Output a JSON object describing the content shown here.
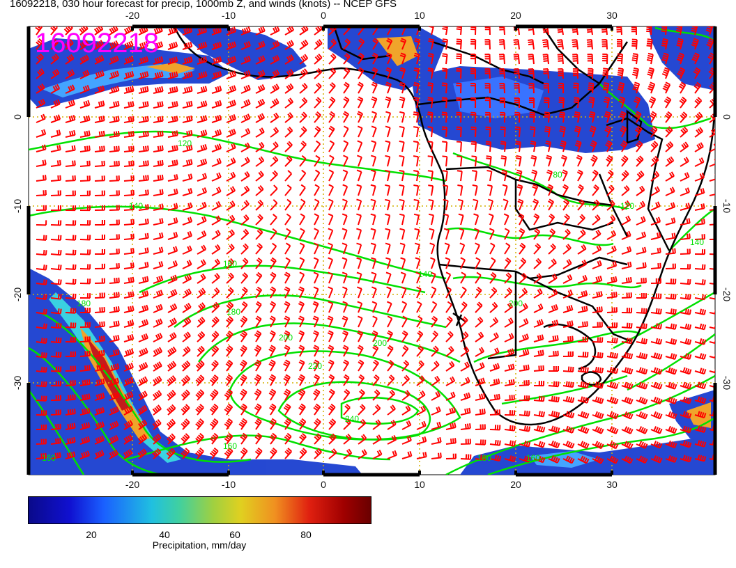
{
  "title": "16092218, 030 hour forecast for precip, 1000mb Z, and winds (knots) -- NCEP GFS",
  "stamp": "16092218",
  "lon_ticks": [
    "-20",
    "-10",
    "0",
    "10",
    "20",
    "30"
  ],
  "lat_ticks": [
    "0",
    "-10",
    "-20",
    "-30"
  ],
  "contour_labels": [
    "120",
    "140",
    "160",
    "180",
    "200",
    "220",
    "240",
    "180",
    "160",
    "200",
    "140",
    "80",
    "120",
    "140",
    "160",
    "180",
    "200",
    "160"
  ],
  "colorbar": {
    "ticks": [
      "20",
      "40",
      "60",
      "80"
    ],
    "label": "Precipitation, mm/day"
  },
  "colors": {
    "barb": "#ff0000",
    "contour": "#00e000",
    "coast": "#000000",
    "grid": "#d4b000",
    "stamp": "#ff00ff"
  }
}
